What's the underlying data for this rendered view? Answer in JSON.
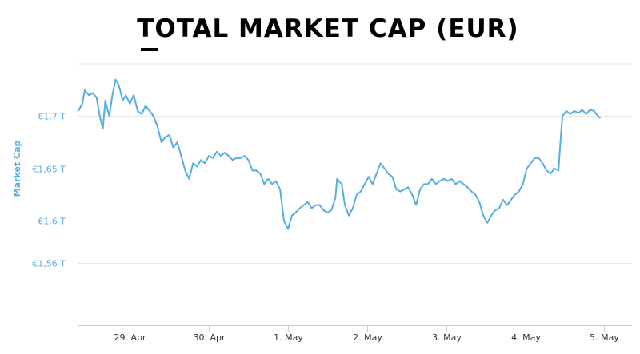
{
  "chart_data": {
    "type": "line",
    "title": "TOTAL MARKET CAP (EUR)",
    "ylabel": "Market Cap",
    "xlabel": "",
    "x_ticks": [
      "29. Apr",
      "30. Apr",
      "1. May",
      "2. May",
      "3. May",
      "4. May",
      "5. May"
    ],
    "y_ticks": [
      {
        "value": 1.56,
        "label": "€1,56 T"
      },
      {
        "value": 1.6,
        "label": "€1,6 T"
      },
      {
        "value": 1.65,
        "label": "€1,65 T"
      },
      {
        "value": 1.7,
        "label": "€1,7 T"
      }
    ],
    "x_unit": "days",
    "xlim": [
      -0.65,
      6.35
    ],
    "ylim": [
      1.5,
      1.75
    ],
    "grid": true,
    "legend": "none",
    "line_color": "#55aee0",
    "series": [
      {
        "values": [
          [
            -0.65,
            1.705
          ],
          [
            -0.6,
            1.712
          ],
          [
            -0.57,
            1.725
          ],
          [
            -0.52,
            1.72
          ],
          [
            -0.47,
            1.722
          ],
          [
            -0.42,
            1.718
          ],
          [
            -0.38,
            1.7
          ],
          [
            -0.34,
            1.688
          ],
          [
            -0.31,
            1.715
          ],
          [
            -0.26,
            1.7
          ],
          [
            -0.22,
            1.72
          ],
          [
            -0.18,
            1.735
          ],
          [
            -0.14,
            1.73
          ],
          [
            -0.09,
            1.715
          ],
          [
            -0.05,
            1.72
          ],
          [
            0.0,
            1.712
          ],
          [
            0.05,
            1.72
          ],
          [
            0.1,
            1.705
          ],
          [
            0.15,
            1.702
          ],
          [
            0.2,
            1.71
          ],
          [
            0.25,
            1.705
          ],
          [
            0.3,
            1.7
          ],
          [
            0.35,
            1.69
          ],
          [
            0.4,
            1.675
          ],
          [
            0.45,
            1.68
          ],
          [
            0.5,
            1.682
          ],
          [
            0.55,
            1.67
          ],
          [
            0.6,
            1.675
          ],
          [
            0.65,
            1.662
          ],
          [
            0.7,
            1.648
          ],
          [
            0.75,
            1.64
          ],
          [
            0.8,
            1.655
          ],
          [
            0.85,
            1.652
          ],
          [
            0.9,
            1.658
          ],
          [
            0.95,
            1.655
          ],
          [
            1.0,
            1.662
          ],
          [
            1.05,
            1.66
          ],
          [
            1.1,
            1.666
          ],
          [
            1.15,
            1.662
          ],
          [
            1.2,
            1.665
          ],
          [
            1.25,
            1.662
          ],
          [
            1.3,
            1.658
          ],
          [
            1.35,
            1.66
          ],
          [
            1.4,
            1.66
          ],
          [
            1.45,
            1.662
          ],
          [
            1.5,
            1.658
          ],
          [
            1.55,
            1.648
          ],
          [
            1.6,
            1.648
          ],
          [
            1.65,
            1.645
          ],
          [
            1.7,
            1.635
          ],
          [
            1.75,
            1.64
          ],
          [
            1.8,
            1.635
          ],
          [
            1.85,
            1.638
          ],
          [
            1.9,
            1.63
          ],
          [
            1.95,
            1.6
          ],
          [
            2.0,
            1.592
          ],
          [
            2.05,
            1.605
          ],
          [
            2.1,
            1.608
          ],
          [
            2.15,
            1.612
          ],
          [
            2.2,
            1.615
          ],
          [
            2.25,
            1.618
          ],
          [
            2.3,
            1.612
          ],
          [
            2.35,
            1.615
          ],
          [
            2.4,
            1.615
          ],
          [
            2.45,
            1.61
          ],
          [
            2.5,
            1.608
          ],
          [
            2.55,
            1.61
          ],
          [
            2.6,
            1.622
          ],
          [
            2.62,
            1.64
          ],
          [
            2.68,
            1.635
          ],
          [
            2.72,
            1.615
          ],
          [
            2.77,
            1.605
          ],
          [
            2.82,
            1.612
          ],
          [
            2.87,
            1.625
          ],
          [
            2.92,
            1.628
          ],
          [
            2.97,
            1.635
          ],
          [
            3.02,
            1.642
          ],
          [
            3.07,
            1.635
          ],
          [
            3.12,
            1.645
          ],
          [
            3.17,
            1.655
          ],
          [
            3.22,
            1.65
          ],
          [
            3.27,
            1.645
          ],
          [
            3.32,
            1.642
          ],
          [
            3.37,
            1.63
          ],
          [
            3.42,
            1.628
          ],
          [
            3.47,
            1.63
          ],
          [
            3.52,
            1.632
          ],
          [
            3.57,
            1.625
          ],
          [
            3.62,
            1.615
          ],
          [
            3.67,
            1.63
          ],
          [
            3.72,
            1.635
          ],
          [
            3.77,
            1.635
          ],
          [
            3.82,
            1.64
          ],
          [
            3.87,
            1.635
          ],
          [
            3.92,
            1.638
          ],
          [
            3.97,
            1.64
          ],
          [
            4.02,
            1.638
          ],
          [
            4.07,
            1.64
          ],
          [
            4.12,
            1.635
          ],
          [
            4.17,
            1.638
          ],
          [
            4.22,
            1.635
          ],
          [
            4.27,
            1.632
          ],
          [
            4.32,
            1.628
          ],
          [
            4.37,
            1.625
          ],
          [
            4.42,
            1.618
          ],
          [
            4.47,
            1.605
          ],
          [
            4.52,
            1.598
          ],
          [
            4.57,
            1.605
          ],
          [
            4.62,
            1.61
          ],
          [
            4.67,
            1.612
          ],
          [
            4.72,
            1.62
          ],
          [
            4.77,
            1.615
          ],
          [
            4.82,
            1.62
          ],
          [
            4.87,
            1.625
          ],
          [
            4.92,
            1.628
          ],
          [
            4.97,
            1.635
          ],
          [
            5.02,
            1.65
          ],
          [
            5.07,
            1.655
          ],
          [
            5.12,
            1.66
          ],
          [
            5.17,
            1.66
          ],
          [
            5.22,
            1.655
          ],
          [
            5.27,
            1.648
          ],
          [
            5.32,
            1.645
          ],
          [
            5.37,
            1.65
          ],
          [
            5.42,
            1.648
          ],
          [
            5.45,
            1.68
          ],
          [
            5.47,
            1.7
          ],
          [
            5.52,
            1.705
          ],
          [
            5.57,
            1.702
          ],
          [
            5.62,
            1.705
          ],
          [
            5.67,
            1.703
          ],
          [
            5.72,
            1.706
          ],
          [
            5.77,
            1.702
          ],
          [
            5.82,
            1.706
          ],
          [
            5.87,
            1.705
          ],
          [
            5.92,
            1.7
          ],
          [
            5.95,
            1.698
          ]
        ]
      }
    ]
  }
}
